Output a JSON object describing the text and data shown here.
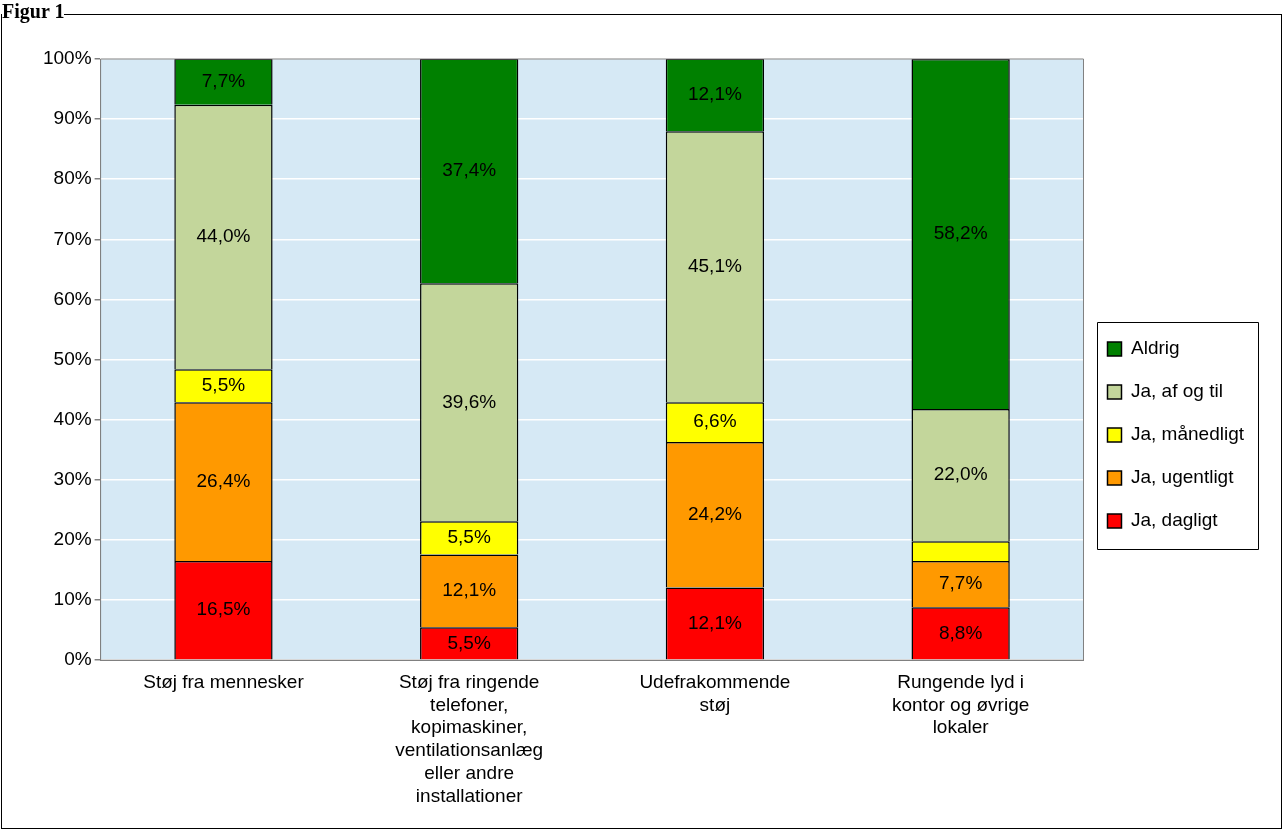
{
  "chart_data": {
    "type": "bar",
    "title": "Figur 1",
    "stacked": true,
    "categories": [
      "Støj fra mennesker",
      "Støj fra ringende telefoner, kopimaskiner, ventilationsanlæg eller andre installationer",
      "Udefrakommende støj",
      "Rungende lyd i kontor og øvrige lokaler"
    ],
    "series": [
      {
        "name": "Ja, dagligt",
        "color": "#ff0000",
        "values": [
          16.5,
          5.5,
          12.1,
          8.8
        ],
        "value_labels": [
          "16,5%",
          "5,5%",
          "12,1%",
          "8,8%"
        ]
      },
      {
        "name": "Ja, ugentligt",
        "color": "#ff9900",
        "values": [
          26.4,
          12.1,
          24.2,
          7.7
        ],
        "value_labels": [
          "26,4%",
          "12,1%",
          "24,2%",
          "7,7%"
        ]
      },
      {
        "name": "Ja, månedligt",
        "color": "#ffff00",
        "values": [
          5.5,
          5.5,
          6.6,
          3.3
        ],
        "value_labels": [
          "5,5%",
          "5,5%",
          "6,6%",
          null
        ]
      },
      {
        "name": "Ja, af og til",
        "color": "#c3d69b",
        "values": [
          44.0,
          39.6,
          45.1,
          22.0
        ],
        "value_labels": [
          "44,0%",
          "39,6%",
          "45,1%",
          "22,0%"
        ]
      },
      {
        "name": "Aldrig",
        "color": "#008000",
        "values": [
          7.7,
          37.4,
          12.1,
          58.2
        ],
        "value_labels": [
          "7,7%",
          "37,4%",
          "12,1%",
          "58,2%"
        ]
      }
    ],
    "ylim": [
      0,
      100
    ],
    "yticks": [
      {
        "value": 0,
        "label": "0%"
      },
      {
        "value": 10,
        "label": "10%"
      },
      {
        "value": 20,
        "label": "20%"
      },
      {
        "value": 30,
        "label": "30%"
      },
      {
        "value": 40,
        "label": "40%"
      },
      {
        "value": 50,
        "label": "50%"
      },
      {
        "value": 60,
        "label": "60%"
      },
      {
        "value": 70,
        "label": "70%"
      },
      {
        "value": 80,
        "label": "80%"
      },
      {
        "value": 90,
        "label": "90%"
      },
      {
        "value": 100,
        "label": "100%"
      }
    ],
    "grid": "y",
    "legend": "right"
  }
}
